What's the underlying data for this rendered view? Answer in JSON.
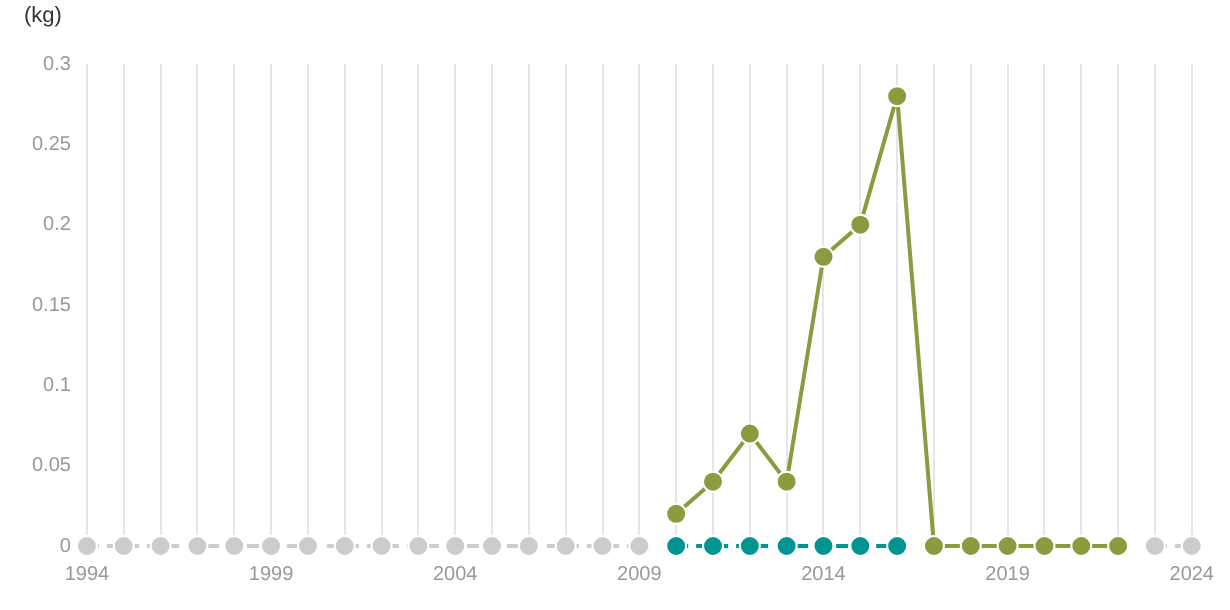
{
  "chart_data": {
    "type": "line",
    "ylabel": "(kg)",
    "x": [
      1994,
      1995,
      1996,
      1997,
      1998,
      1999,
      2000,
      2001,
      2002,
      2003,
      2004,
      2005,
      2006,
      2007,
      2008,
      2009,
      2010,
      2011,
      2012,
      2013,
      2014,
      2015,
      2016,
      2017,
      2018,
      2019,
      2020,
      2021,
      2022,
      2023,
      2024
    ],
    "series": [
      {
        "color": "#cccccc",
        "line_style": "dashed",
        "values": [
          0,
          0,
          0,
          0,
          0,
          0,
          0,
          0,
          0,
          0,
          0,
          0,
          0,
          0,
          0,
          0,
          null,
          null,
          null,
          null,
          null,
          null,
          null,
          null,
          null,
          null,
          null,
          null,
          null,
          0,
          0
        ]
      },
      {
        "color": "#009490",
        "line_style": "dashed",
        "values": [
          null,
          null,
          null,
          null,
          null,
          null,
          null,
          null,
          null,
          null,
          null,
          null,
          null,
          null,
          null,
          null,
          0,
          0,
          0,
          0,
          0,
          0,
          0,
          null,
          null,
          null,
          null,
          null,
          null,
          null,
          null
        ]
      },
      {
        "color": "#8c9a40",
        "line_style": "solid",
        "values": [
          null,
          null,
          null,
          null,
          null,
          null,
          null,
          null,
          null,
          null,
          null,
          null,
          null,
          null,
          null,
          null,
          0.02,
          0.04,
          0.07,
          0.04,
          0.18,
          0.2,
          0.28,
          0,
          0,
          0,
          0,
          0,
          0,
          null,
          null
        ]
      }
    ],
    "xlim": [
      1994,
      2024
    ],
    "xticks": [
      1994,
      {
        "value": 1995,
        "label": null
      },
      {
        "value": 1996,
        "label": null
      },
      {
        "value": 1997,
        "label": null
      },
      {
        "value": 1998,
        "label": null
      },
      1999,
      {
        "value": 2000,
        "label": null
      },
      {
        "value": 2001,
        "label": null
      },
      {
        "value": 2002,
        "label": null
      },
      {
        "value": 2003,
        "label": null
      },
      2004,
      {
        "value": 2005,
        "label": null
      },
      {
        "value": 2006,
        "label": null
      },
      {
        "value": 2007,
        "label": null
      },
      {
        "value": 2008,
        "label": null
      },
      2009,
      {
        "value": 2010,
        "label": null
      },
      {
        "value": 2011,
        "label": null
      },
      {
        "value": 2012,
        "label": null
      },
      {
        "value": 2013,
        "label": null
      },
      2014,
      {
        "value": 2015,
        "label": null
      },
      {
        "value": 2016,
        "label": null
      },
      {
        "value": 2017,
        "label": null
      },
      {
        "value": 2018,
        "label": null
      },
      2019,
      {
        "value": 2020,
        "label": null
      },
      {
        "value": 2021,
        "label": null
      },
      {
        "value": 2022,
        "label": null
      },
      {
        "value": 2023,
        "label": null
      },
      2024
    ],
    "ylim": [
      0,
      0.3
    ],
    "yticks": [
      0,
      0.05,
      0.1,
      0.15,
      0.2,
      0.25,
      0.3
    ],
    "grid": "x",
    "legend": false,
    "marker": "circle"
  }
}
